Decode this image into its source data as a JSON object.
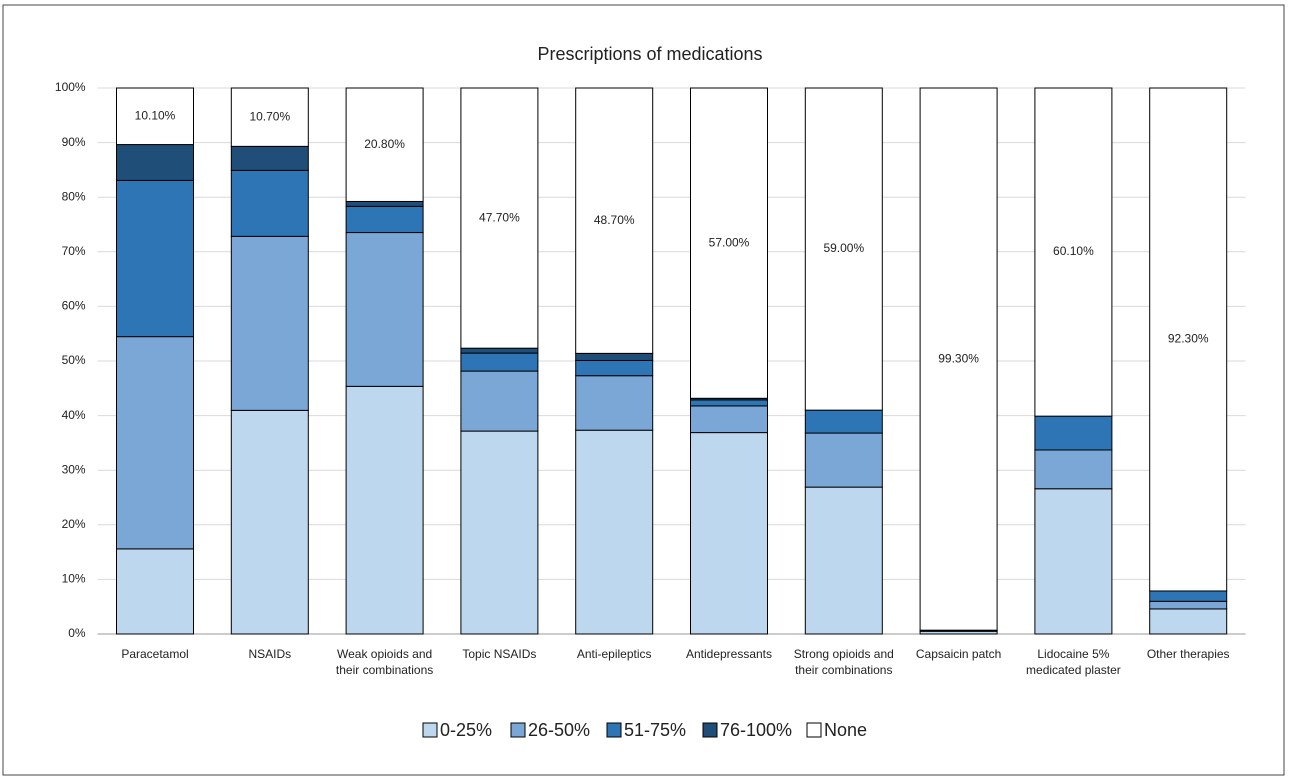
{
  "chart_data": {
    "type": "bar",
    "stacked": "percent",
    "title": "Prescriptions of medications",
    "categories": [
      "Paracetamol",
      "NSAIDs",
      "Weak opioids and their combinations",
      "Topic NSAIDs",
      "Anti-epileptics",
      "Antidepressants",
      "Strong opioids and their combinations",
      "Capsaicin patch",
      "Lidocaine 5% medicated plaster",
      "Other therapies"
    ],
    "series": [
      {
        "name": "0-25%",
        "color": "#bdd7ee",
        "values": [
          15.2,
          41.0,
          45.4,
          37.2,
          37.4,
          37.0,
          26.9,
          0.5,
          26.6,
          4.6
        ]
      },
      {
        "name": "26-50%",
        "color": "#7aa7d6",
        "values": [
          37.9,
          31.9,
          28.2,
          11.0,
          10.0,
          4.9,
          9.9,
          0.1,
          7.1,
          1.4
        ]
      },
      {
        "name": "51-75%",
        "color": "#2e75b6",
        "values": [
          27.9,
          12.1,
          4.8,
          3.3,
          2.8,
          1.1,
          4.2,
          0.1,
          6.2,
          1.9
        ]
      },
      {
        "name": "76-100%",
        "color": "#1f4e79",
        "values": [
          6.4,
          4.4,
          0.9,
          0.9,
          1.3,
          0.3,
          0,
          0,
          0,
          0
        ]
      },
      {
        "name": "None",
        "color": "#ffffff",
        "values": [
          10.1,
          10.7,
          20.8,
          47.7,
          48.7,
          57.0,
          59.0,
          99.3,
          60.1,
          92.3
        ],
        "value_labels": [
          "10.10%",
          "10.70%",
          "20.80%",
          "47.70%",
          "48.70%",
          "57.00%",
          "59.00%",
          "99.30%",
          "60.10%",
          "92.30%"
        ]
      }
    ],
    "ylim": [
      0,
      100
    ],
    "yticks": [
      {
        "value": 0,
        "label": "0%"
      },
      {
        "value": 10,
        "label": "10%"
      },
      {
        "value": 20,
        "label": "20%"
      },
      {
        "value": 30,
        "label": "30%"
      },
      {
        "value": 40,
        "label": "40%"
      },
      {
        "value": 50,
        "label": "50%"
      },
      {
        "value": 60,
        "label": "60%"
      },
      {
        "value": 70,
        "label": "70%"
      },
      {
        "value": 80,
        "label": "80%"
      },
      {
        "value": 90,
        "label": "90%"
      },
      {
        "value": 100,
        "label": "100%"
      }
    ],
    "grid": true,
    "legend": "bottom"
  }
}
